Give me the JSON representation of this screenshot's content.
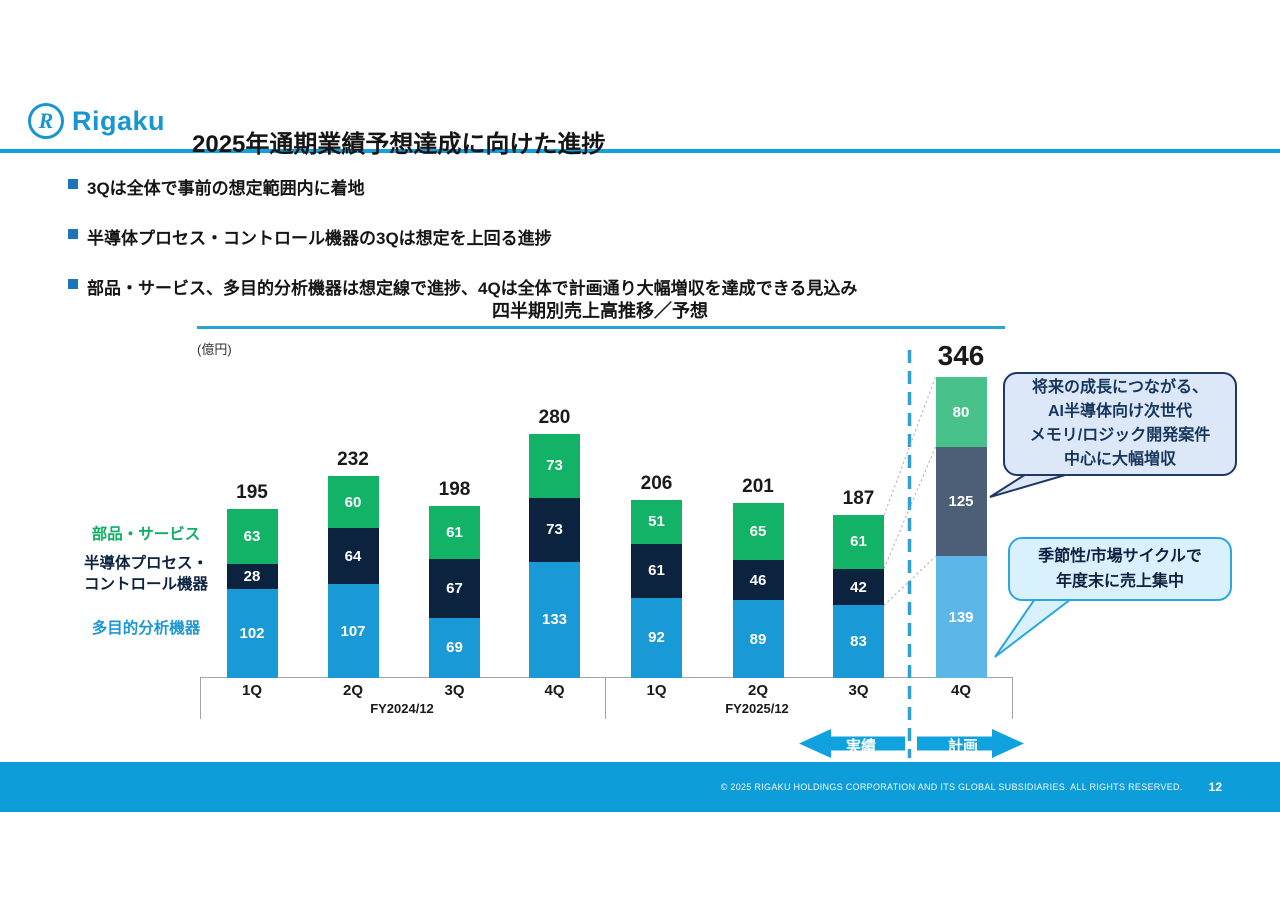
{
  "slide": {
    "logo": {
      "brand": "Rigaku",
      "mark_letter": "R"
    },
    "title": "2025年通期業績予想達成に向けた進捗",
    "bullets": [
      "3Qは全体で事前の想定範囲内に着地",
      "半導体プロセス・コントロール機器の3Qは想定を上回る進捗",
      "部品・サービス、多目的分析機器は想定線で進捗、4Qは全体で計画通り大幅増収を達成できる見込み"
    ],
    "footer": {
      "copyright": "© 2025 RIGAKU HOLDINGS CORPORATION AND ITS GLOBAL SUBSIDIARIES. ALL RIGHTS RESERVED.",
      "page_number": "12"
    }
  },
  "chart_data": {
    "type": "bar",
    "stacked": true,
    "title": "四半期別売上高推移／予想",
    "unit_label": "(億円)",
    "categories": [
      "1Q",
      "2Q",
      "3Q",
      "4Q",
      "1Q",
      "2Q",
      "3Q",
      "4Q"
    ],
    "group_labels": [
      "FY2024/12",
      "FY2025/12"
    ],
    "series": [
      {
        "name": "多目的分析機器",
        "color": "#1999D6",
        "plan_color": "#5CB7E8",
        "values": [
          102,
          107,
          69,
          133,
          92,
          89,
          83,
          139
        ]
      },
      {
        "name": "半導体プロセス・コントロール機器",
        "color": "#0C2340",
        "plan_color": "#4C5F76",
        "values": [
          28,
          64,
          67,
          73,
          61,
          46,
          42,
          125
        ]
      },
      {
        "name": "部品・サービス",
        "color": "#12B366",
        "plan_color": "#48C28A",
        "values": [
          63,
          60,
          61,
          73,
          51,
          65,
          61,
          80
        ]
      }
    ],
    "totals": [
      195,
      232,
      198,
      280,
      206,
      201,
      187,
      346
    ],
    "plan_index": 7,
    "legend": [
      {
        "label_lines": [
          "部品・サービス"
        ],
        "color": "#0FAE62"
      },
      {
        "label_lines": [
          "半導体プロセス・",
          "コントロール機器"
        ],
        "color": "#0C2340"
      },
      {
        "label_lines": [
          "多目的分析機器"
        ],
        "color": "#1E97D4"
      }
    ],
    "annotations": {
      "actual_label": "実績",
      "plan_label": "計画"
    },
    "callouts": [
      {
        "lines": [
          "将来の成長につながる、",
          "AI半導体向け次世代",
          "メモリ/ロジック開発案件",
          "中心に大幅増収"
        ]
      },
      {
        "lines": [
          "季節性/市場サイクルで",
          "年度末に売上集中"
        ]
      }
    ],
    "accent_colors": {
      "rule_blue": "#14A0DD",
      "arrow_blue": "#0FA2DE",
      "footer_blue": "#0D9EDA",
      "bullet_blue": "#1E74BB"
    },
    "ylim": [
      0,
      360
    ],
    "grid": false,
    "legend_position": "left"
  }
}
